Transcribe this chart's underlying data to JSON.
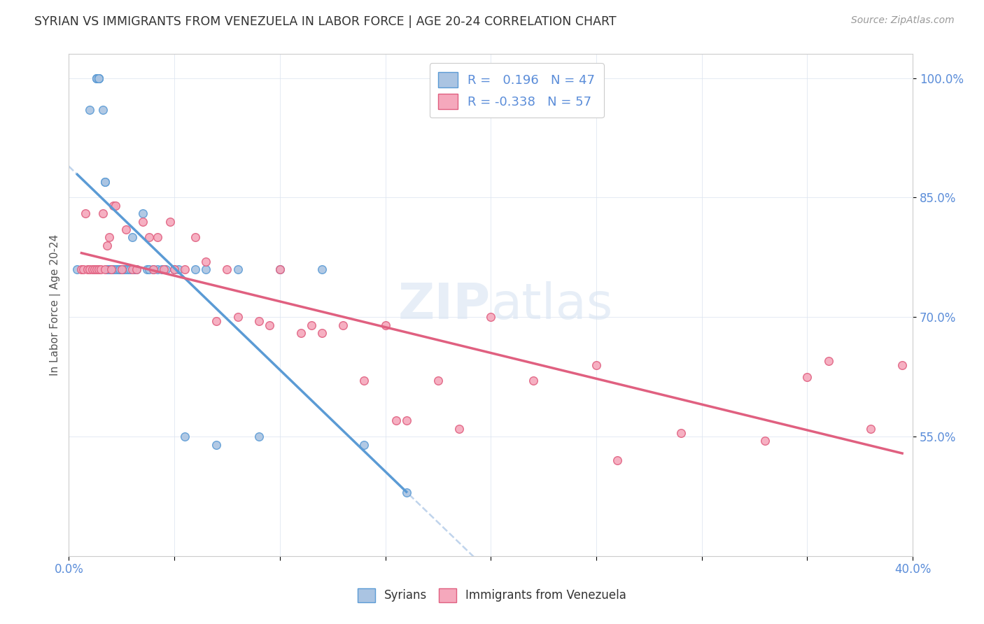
{
  "title": "SYRIAN VS IMMIGRANTS FROM VENEZUELA IN LABOR FORCE | AGE 20-24 CORRELATION CHART",
  "source": "Source: ZipAtlas.com",
  "ylabel": "In Labor Force | Age 20-24",
  "xlim": [
    0.0,
    0.4
  ],
  "ylim": [
    0.4,
    1.03
  ],
  "xticks": [
    0.0,
    0.05,
    0.1,
    0.15,
    0.2,
    0.25,
    0.3,
    0.35,
    0.4
  ],
  "yticks": [
    0.55,
    0.7,
    0.85,
    1.0
  ],
  "ytick_labels": [
    "55.0%",
    "70.0%",
    "85.0%",
    "100.0%"
  ],
  "r_syrian": 0.196,
  "n_syrian": 47,
  "r_venezuela": -0.338,
  "n_venezuela": 57,
  "syrian_color": "#aac4e2",
  "venezuela_color": "#f5a8bc",
  "syrian_line_color": "#5b9bd5",
  "venezuela_line_color": "#e06080",
  "dash_line_color": "#c0d4ec",
  "watermark_zip": "ZIP",
  "watermark_atlas": "atlas",
  "syrian_x": [
    0.004,
    0.01,
    0.013,
    0.013,
    0.013,
    0.014,
    0.014,
    0.014,
    0.014,
    0.016,
    0.017,
    0.017,
    0.018,
    0.019,
    0.02,
    0.021,
    0.022,
    0.023,
    0.024,
    0.024,
    0.025,
    0.026,
    0.027,
    0.028,
    0.029,
    0.03,
    0.031,
    0.032,
    0.035,
    0.037,
    0.038,
    0.04,
    0.042,
    0.044,
    0.046,
    0.05,
    0.052,
    0.055,
    0.06,
    0.065,
    0.07,
    0.08,
    0.09,
    0.1,
    0.12,
    0.14,
    0.16
  ],
  "syrian_y": [
    0.76,
    0.96,
    1.0,
    1.0,
    1.0,
    1.0,
    1.0,
    1.0,
    1.0,
    0.96,
    0.87,
    0.87,
    0.76,
    0.76,
    0.76,
    0.76,
    0.76,
    0.76,
    0.76,
    0.76,
    0.76,
    0.76,
    0.76,
    0.76,
    0.76,
    0.8,
    0.76,
    0.76,
    0.83,
    0.76,
    0.76,
    0.76,
    0.76,
    0.76,
    0.76,
    0.76,
    0.76,
    0.55,
    0.76,
    0.76,
    0.54,
    0.76,
    0.55,
    0.76,
    0.76,
    0.54,
    0.48
  ],
  "venezuela_x": [
    0.006,
    0.007,
    0.008,
    0.009,
    0.01,
    0.011,
    0.012,
    0.013,
    0.014,
    0.015,
    0.016,
    0.017,
    0.018,
    0.019,
    0.02,
    0.021,
    0.022,
    0.025,
    0.027,
    0.03,
    0.032,
    0.035,
    0.038,
    0.04,
    0.042,
    0.045,
    0.048,
    0.05,
    0.055,
    0.06,
    0.065,
    0.07,
    0.075,
    0.08,
    0.09,
    0.095,
    0.1,
    0.11,
    0.115,
    0.12,
    0.13,
    0.14,
    0.15,
    0.155,
    0.16,
    0.175,
    0.185,
    0.2,
    0.22,
    0.25,
    0.26,
    0.29,
    0.33,
    0.35,
    0.36,
    0.38,
    0.395
  ],
  "venezuela_y": [
    0.76,
    0.76,
    0.83,
    0.76,
    0.76,
    0.76,
    0.76,
    0.76,
    0.76,
    0.76,
    0.83,
    0.76,
    0.79,
    0.8,
    0.76,
    0.84,
    0.84,
    0.76,
    0.81,
    0.76,
    0.76,
    0.82,
    0.8,
    0.76,
    0.8,
    0.76,
    0.82,
    0.76,
    0.76,
    0.8,
    0.77,
    0.695,
    0.76,
    0.7,
    0.695,
    0.69,
    0.76,
    0.68,
    0.69,
    0.68,
    0.69,
    0.62,
    0.69,
    0.57,
    0.57,
    0.62,
    0.56,
    0.7,
    0.62,
    0.64,
    0.52,
    0.555,
    0.545,
    0.625,
    0.645,
    0.56,
    0.64
  ]
}
